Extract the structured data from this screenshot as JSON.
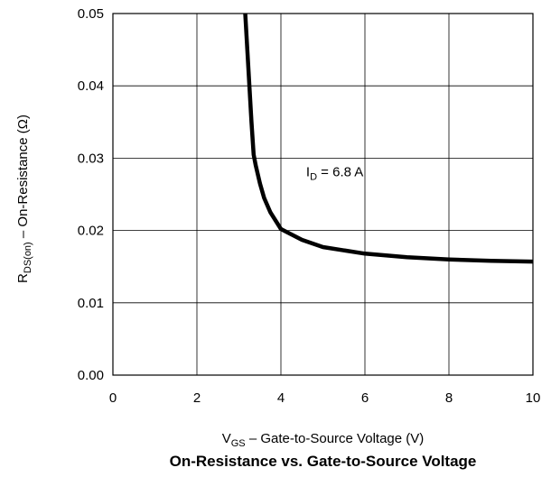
{
  "chart_data": {
    "type": "line",
    "title": "On-Resistance vs. Gate-to-Source Voltage",
    "xlabel": {
      "main": "V",
      "sub": "GS",
      "rest": " – Gate-to-Source Voltage (V)"
    },
    "ylabel": {
      "main": "R",
      "sub": "DS(on)",
      "rest": " – On-Resistance (Ω)"
    },
    "xlim": [
      0,
      10
    ],
    "ylim": [
      0,
      0.05
    ],
    "x_ticks": [
      0,
      2,
      4,
      6,
      8,
      10
    ],
    "x_tick_labels": [
      "0",
      "2",
      "4",
      "6",
      "8",
      "10"
    ],
    "y_ticks": [
      0,
      0.01,
      0.02,
      0.03,
      0.04,
      0.05
    ],
    "y_tick_labels": [
      "0.00",
      "0.01",
      "0.02",
      "0.03",
      "0.04",
      "0.05"
    ],
    "grid": true,
    "annotation": {
      "main": "I",
      "sub": "D",
      "rest": " = 6.8 A",
      "x": 4.6,
      "y": 0.0275
    },
    "series": [
      {
        "color": "#000000",
        "x": [
          3.15,
          3.2,
          3.25,
          3.3,
          3.35,
          3.4,
          3.5,
          3.6,
          3.75,
          4.0,
          4.5,
          5.0,
          6.0,
          7.0,
          8.0,
          9.0,
          10.0
        ],
        "y": [
          0.05,
          0.045,
          0.04,
          0.035,
          0.0305,
          0.029,
          0.0265,
          0.0245,
          0.0225,
          0.0202,
          0.0187,
          0.0177,
          0.0168,
          0.0163,
          0.016,
          0.0158,
          0.0157
        ]
      }
    ]
  }
}
